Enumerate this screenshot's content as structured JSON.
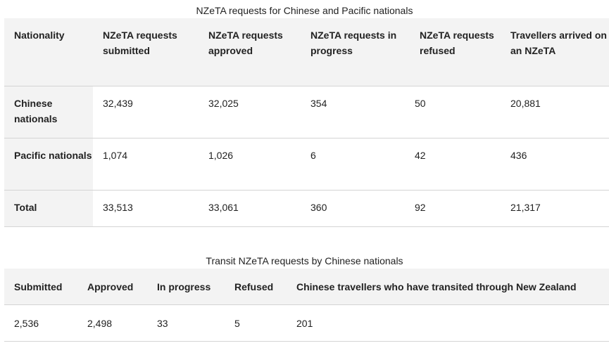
{
  "table1": {
    "caption": "NZeTA requests for Chinese and Pacific nationals",
    "headers": [
      "Nationality",
      "NZeTA requests submitted",
      "NZeTA requests approved",
      "NZeTA requests in progress",
      "NZeTA requests refused",
      "Travellers arrived on an NZeTA"
    ],
    "rows": [
      [
        "Chinese nationals",
        "32,439",
        "32,025",
        "354",
        "50",
        "20,881"
      ],
      [
        "Pacific nationals",
        "1,074",
        "1,026",
        "6",
        "42",
        "436"
      ],
      [
        "Total",
        "33,513",
        "33,061",
        "360",
        "92",
        "21,317"
      ]
    ]
  },
  "table2": {
    "caption": "Transit NZeTA requests by Chinese nationals",
    "headers": [
      "Submitted",
      "Approved",
      "In progress",
      "Refused",
      "Chinese travellers who have transited through New Zealand"
    ],
    "rows": [
      [
        "2,536",
        "2,498",
        "33",
        "5",
        "201"
      ]
    ]
  }
}
